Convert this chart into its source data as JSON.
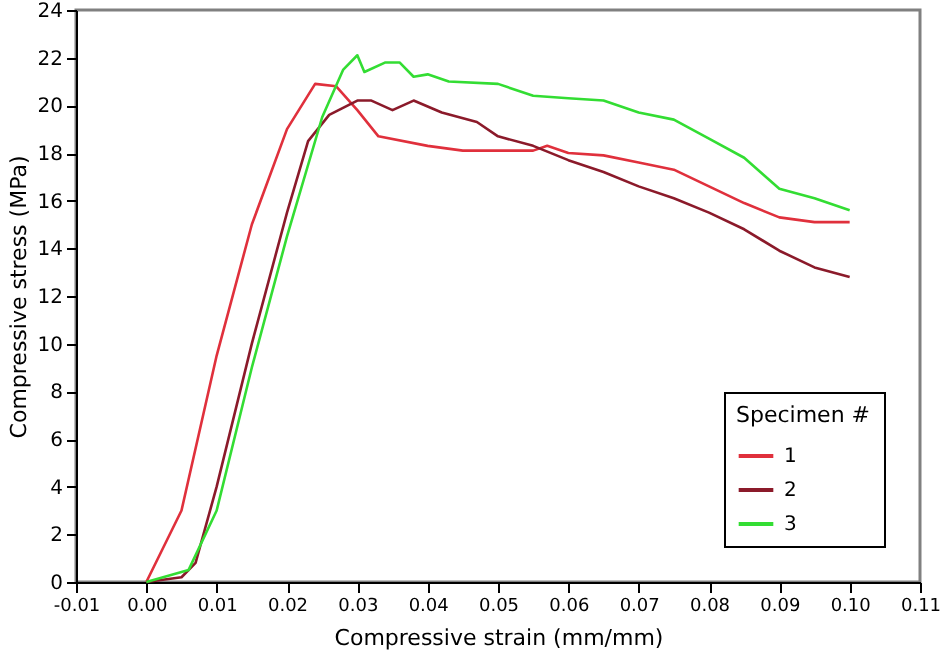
{
  "chart_data": {
    "type": "line",
    "xlabel": "Compressive strain (mm/mm)",
    "ylabel": "Compressive stress (MPa)",
    "legend_title": "Specimen #",
    "legend": "bottom right",
    "grid": false,
    "xlim": [
      -0.01,
      0.11
    ],
    "ylim": [
      0,
      24
    ],
    "xticks": [
      {
        "value": -0.01,
        "label": "-0.01"
      },
      {
        "value": 0,
        "label": "0.00"
      },
      {
        "value": 0.01,
        "label": "0.01"
      },
      {
        "value": 0.02,
        "label": "0.02"
      },
      {
        "value": 0.03,
        "label": "0.03"
      },
      {
        "value": 0.04,
        "label": "0.04"
      },
      {
        "value": 0.05,
        "label": "0.05"
      },
      {
        "value": 0.06,
        "label": "0.06"
      },
      {
        "value": 0.07,
        "label": "0.07"
      },
      {
        "value": 0.08,
        "label": "0.08"
      },
      {
        "value": 0.09,
        "label": "0.09"
      },
      {
        "value": 0.1,
        "label": "0.10"
      },
      {
        "value": 0.11,
        "label": "0.11"
      }
    ],
    "yticks": [
      0,
      2,
      4,
      6,
      8,
      10,
      12,
      14,
      16,
      18,
      20,
      22,
      24
    ],
    "series": [
      {
        "name": "1",
        "color": "#e0303c",
        "x": [
          0,
          0.005,
          0.01,
          0.015,
          0.02,
          0.024,
          0.027,
          0.03,
          0.033,
          0.04,
          0.045,
          0.055,
          0.057,
          0.06,
          0.065,
          0.07,
          0.075,
          0.08,
          0.085,
          0.09,
          0.095,
          0.1
        ],
        "values": [
          0,
          3,
          9.5,
          15,
          19,
          20.9,
          20.8,
          19.8,
          18.7,
          18.3,
          18.1,
          18.1,
          18.3,
          18,
          17.9,
          17.6,
          17.3,
          16.6,
          15.9,
          15.3,
          15.1,
          15.1
        ]
      },
      {
        "name": "2",
        "color": "#8b1a2a",
        "x": [
          0,
          0.005,
          0.007,
          0.01,
          0.015,
          0.02,
          0.023,
          0.026,
          0.03,
          0.032,
          0.035,
          0.038,
          0.042,
          0.047,
          0.05,
          0.055,
          0.06,
          0.065,
          0.07,
          0.075,
          0.08,
          0.085,
          0.09,
          0.095,
          0.1
        ],
        "values": [
          0,
          0.2,
          0.8,
          4,
          10,
          15.5,
          18.5,
          19.6,
          20.2,
          20.2,
          19.8,
          20.2,
          19.7,
          19.3,
          18.7,
          18.3,
          17.7,
          17.2,
          16.6,
          16.1,
          15.5,
          14.8,
          13.9,
          13.2,
          12.8
        ]
      },
      {
        "name": "3",
        "color": "#33dd33",
        "x": [
          0,
          0.006,
          0.01,
          0.015,
          0.02,
          0.025,
          0.028,
          0.03,
          0.031,
          0.034,
          0.036,
          0.038,
          0.04,
          0.043,
          0.05,
          0.055,
          0.06,
          0.065,
          0.07,
          0.075,
          0.08,
          0.085,
          0.09,
          0.095,
          0.1
        ],
        "values": [
          0,
          0.5,
          3,
          9,
          14.5,
          19.5,
          21.5,
          22.1,
          21.4,
          21.8,
          21.8,
          21.2,
          21.3,
          21,
          20.9,
          20.4,
          20.3,
          20.2,
          19.7,
          19.4,
          18.6,
          17.8,
          16.5,
          16.1,
          15.6
        ]
      }
    ]
  }
}
